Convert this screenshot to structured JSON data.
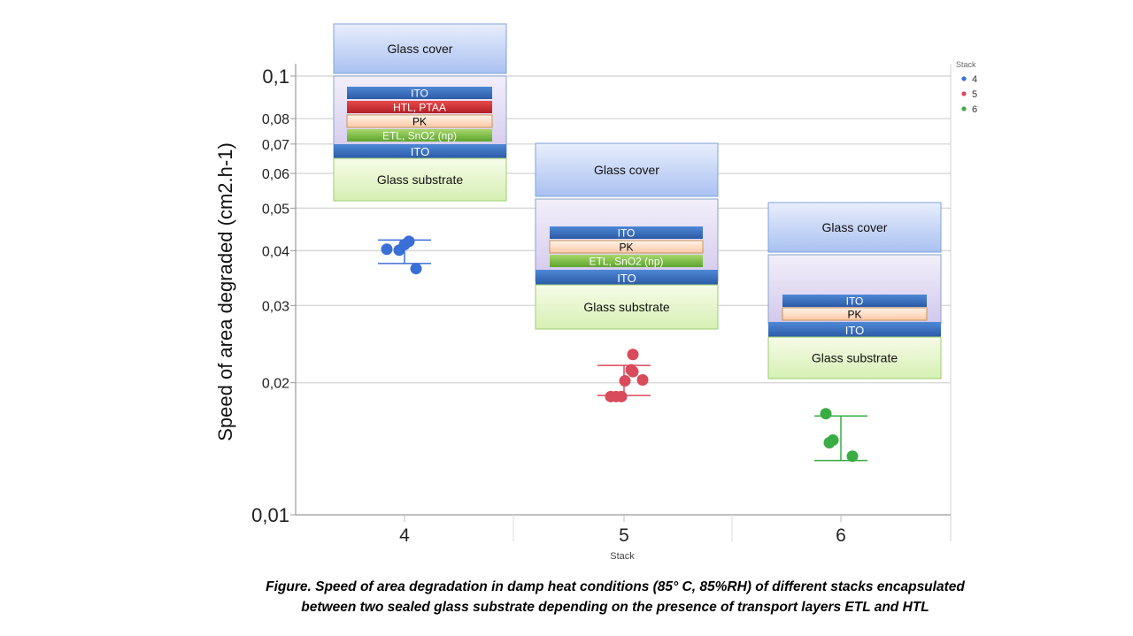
{
  "chart_data": {
    "type": "scatter",
    "title": "",
    "xlabel": "Stack",
    "ylabel": "Speed of area degraded (cm2.h-1)",
    "yscale": "log",
    "ylim": [
      0.01,
      0.1
    ],
    "y_ticks": [
      {
        "value": 0.1,
        "label": "0,1"
      },
      {
        "value": 0.08,
        "label": "0,08"
      },
      {
        "value": 0.07,
        "label": "0,07"
      },
      {
        "value": 0.06,
        "label": "0,06"
      },
      {
        "value": 0.05,
        "label": "0,05"
      },
      {
        "value": 0.04,
        "label": "0,04"
      },
      {
        "value": 0.03,
        "label": "0,03"
      },
      {
        "value": 0.02,
        "label": "0,02"
      },
      {
        "value": 0.01,
        "label": "0,01"
      }
    ],
    "categories": [
      "4",
      "5",
      "6"
    ],
    "grid": true,
    "legend_title": "Stack",
    "legend_position": "top-right",
    "series": [
      {
        "name": "4",
        "color": "#3a6fd8",
        "points": [
          {
            "x": "4",
            "y": 0.0403
          },
          {
            "x": "4",
            "y": 0.0401
          },
          {
            "x": "4",
            "y": 0.0413
          },
          {
            "x": "4",
            "y": 0.042
          },
          {
            "x": "4",
            "y": 0.0364
          }
        ],
        "error_bar": {
          "x": "4",
          "low": 0.0374,
          "high": 0.0423
        }
      },
      {
        "name": "5",
        "color": "#d94a5a",
        "points": [
          {
            "x": "5",
            "y": 0.0186
          },
          {
            "x": "5",
            "y": 0.0186
          },
          {
            "x": "5",
            "y": 0.0186
          },
          {
            "x": "5",
            "y": 0.0202
          },
          {
            "x": "5",
            "y": 0.0214
          },
          {
            "x": "5",
            "y": 0.0212
          },
          {
            "x": "5",
            "y": 0.0203
          },
          {
            "x": "5",
            "y": 0.0232
          }
        ],
        "error_bar": {
          "x": "5",
          "low": 0.0187,
          "high": 0.0219
        }
      },
      {
        "name": "6",
        "color": "#3aac44",
        "points": [
          {
            "x": "6",
            "y": 0.017
          },
          {
            "x": "6",
            "y": 0.0146
          },
          {
            "x": "6",
            "y": 0.0148
          },
          {
            "x": "6",
            "y": 0.0136
          }
        ],
        "error_bar": {
          "x": "6",
          "low": 0.0133,
          "high": 0.0168
        }
      }
    ],
    "annotations": [
      {
        "stack": "4",
        "layers": [
          "Glass cover",
          "ITO",
          "HTL, PTAA",
          "PK",
          "ETL, SnO2 (np)",
          "ITO",
          "Glass substrate"
        ]
      },
      {
        "stack": "5",
        "layers": [
          "Glass cover",
          "ITO",
          "PK",
          "ETL, SnO2 (np)",
          "ITO",
          "Glass substrate"
        ]
      },
      {
        "stack": "6",
        "layers": [
          "Glass cover",
          "ITO",
          "PK",
          "ITO",
          "Glass substrate"
        ]
      }
    ]
  },
  "caption": {
    "line1": "Figure. Speed of area degradation  in damp heat conditions (85° C, 85%RH) of different stacks encapsulated",
    "line2": "between two sealed glass substrate depending on the presence of transport layers ETL and HTL"
  }
}
